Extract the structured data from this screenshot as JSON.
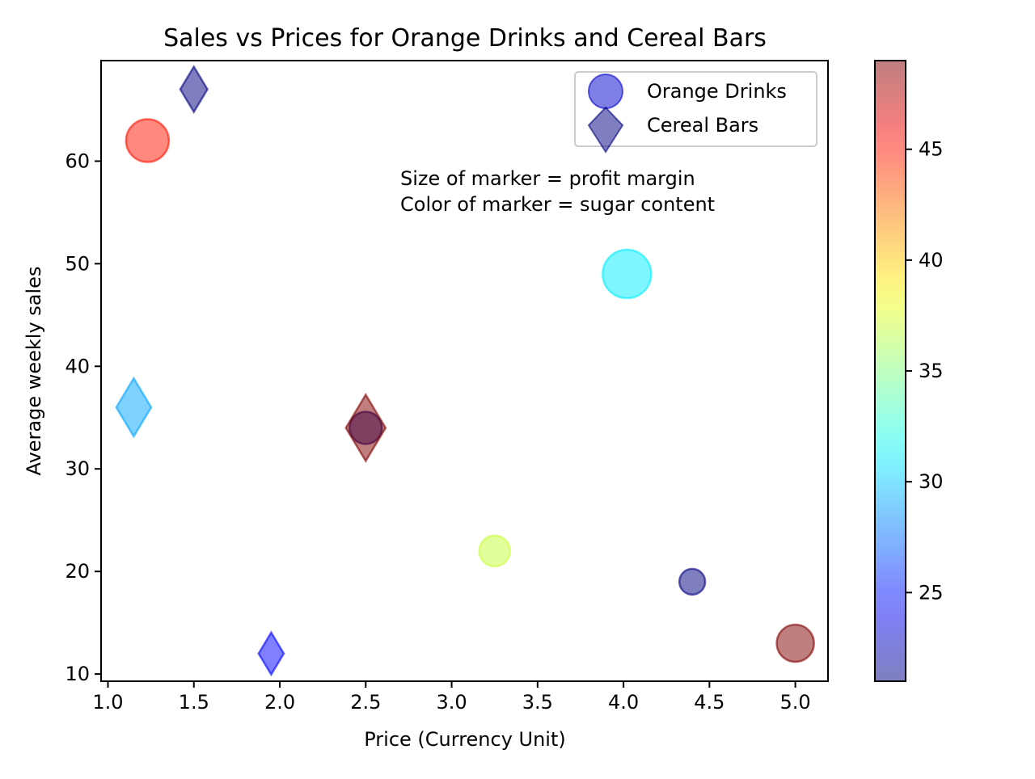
{
  "chart_data": {
    "type": "scatter",
    "title": "Sales vs Prices for Orange Drinks and Cereal Bars",
    "xlabel": "Price (Currency Unit)",
    "ylabel": "Average weekly sales",
    "xlim": [
      0.96,
      5.19
    ],
    "ylim": [
      9.3,
      69.8
    ],
    "xticks": [
      "1.0",
      "1.5",
      "2.0",
      "2.5",
      "3.0",
      "3.5",
      "4.0",
      "4.5",
      "5.0"
    ],
    "yticks": [
      "10",
      "20",
      "30",
      "40",
      "50",
      "60"
    ],
    "grid": false,
    "legend_position": "top-right",
    "annotation": [
      "Size of marker = profit margin",
      "Color of marker = sugar content"
    ],
    "colorbar": {
      "colormap": "jet",
      "alpha": 0.5,
      "range": [
        21,
        49
      ],
      "ticks": [
        "25",
        "30",
        "35",
        "40",
        "45"
      ]
    },
    "series": [
      {
        "name": "Orange Drinks",
        "marker": "circle",
        "legend_color": "#0000cc",
        "points": [
          {
            "x": 1.23,
            "y": 62,
            "size": 363,
            "sugar": 45
          },
          {
            "x": 4.02,
            "y": 49,
            "size": 466,
            "sugar": 31
          },
          {
            "x": 2.5,
            "y": 34,
            "size": 207,
            "sugar": 21
          },
          {
            "x": 3.25,
            "y": 22,
            "size": 187,
            "sugar": 37
          },
          {
            "x": 4.4,
            "y": 19,
            "size": 132,
            "sugar": 21
          },
          {
            "x": 5.0,
            "y": 13,
            "size": 274,
            "sugar": 49
          }
        ]
      },
      {
        "name": "Cereal Bars",
        "marker": "thin_diamond",
        "legend_color": "#000080",
        "points": [
          {
            "x": 1.5,
            "y": 67,
            "size": 406,
            "sugar": 21
          },
          {
            "x": 1.15,
            "y": 36,
            "size": 671,
            "sugar": 29
          },
          {
            "x": 2.5,
            "y": 34,
            "size": 870,
            "sugar": 49
          },
          {
            "x": 1.95,
            "y": 12,
            "size": 350,
            "sugar": 24.5
          }
        ]
      }
    ]
  }
}
